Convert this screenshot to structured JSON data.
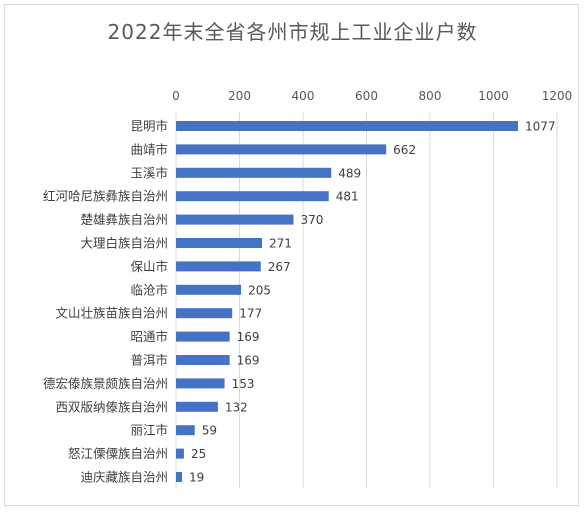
{
  "chart_data": {
    "type": "bar",
    "orientation": "horizontal",
    "title": "2022年末全省各州市规上工业企业户数",
    "categories": [
      "昆明市",
      "曲靖市",
      "玉溪市",
      "红河哈尼族彝族自治州",
      "楚雄彝族自治州",
      "大理白族自治州",
      "保山市",
      "临沧市",
      "文山壮族苗族自治州",
      "昭通市",
      "普洱市",
      "德宏傣族景颇族自治州",
      "西双版纳傣族自治州",
      "丽江市",
      "怒江傈僳族自治州",
      "迪庆藏族自治州"
    ],
    "values": [
      1077,
      662,
      489,
      481,
      370,
      271,
      267,
      205,
      177,
      169,
      169,
      153,
      132,
      59,
      25,
      19
    ],
    "xlim": [
      0,
      1200
    ],
    "xticks": [
      0,
      200,
      400,
      600,
      800,
      1000,
      1200
    ],
    "axis_position": "top",
    "grid": true,
    "legend": "none",
    "bar_color": "#4472c4",
    "grid_color": "#d9d9d9"
  }
}
